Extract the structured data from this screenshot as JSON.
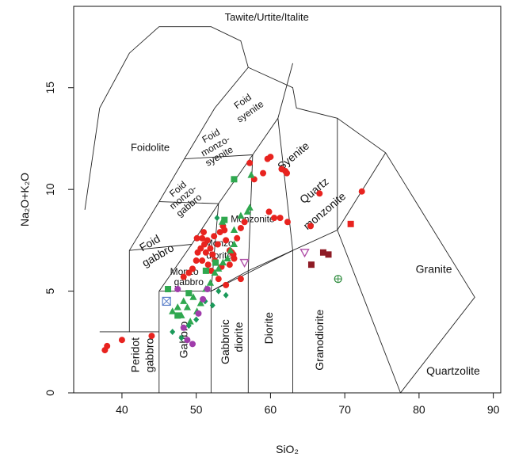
{
  "chart_data": {
    "type": "scatter",
    "title": "",
    "xlabel": "SiO₂",
    "ylabel": "Na₂O+K₂O",
    "xlim": [
      33.5,
      91
    ],
    "ylim": [
      0,
      19
    ],
    "xticks": [
      "40",
      "50",
      "60",
      "70",
      "80",
      "90"
    ],
    "yticks": [
      "0",
      "5",
      "10",
      "15"
    ],
    "xtick_values": [
      40,
      50,
      60,
      70,
      80,
      90
    ],
    "ytick_values": [
      0,
      5,
      10,
      15
    ],
    "field_boundaries": [
      [
        [
          35,
          9
        ],
        [
          37,
          14
        ],
        [
          41,
          16.7
        ],
        [
          45,
          18
        ],
        [
          52,
          18
        ],
        [
          56,
          17.3
        ],
        [
          57,
          16
        ],
        [
          63,
          15
        ],
        [
          63.5,
          14
        ],
        [
          69,
          13.5
        ],
        [
          75.5,
          11.8
        ],
        [
          87.5,
          4.7
        ],
        [
          77.5,
          0
        ]
      ],
      [
        [
          37,
          3
        ],
        [
          41,
          3
        ],
        [
          41,
          7
        ],
        [
          45,
          9.4
        ],
        [
          48.4,
          11.5
        ],
        [
          52.5,
          14
        ],
        [
          57,
          16
        ]
      ],
      [
        [
          45,
          0
        ],
        [
          45,
          5
        ]
      ],
      [
        [
          41,
          3
        ],
        [
          45,
          3
        ]
      ],
      [
        [
          45,
          5
        ],
        [
          52,
          5
        ]
      ],
      [
        [
          52,
          0
        ],
        [
          52,
          5
        ]
      ],
      [
        [
          52,
          5
        ],
        [
          57,
          6
        ],
        [
          63,
          7
        ],
        [
          69,
          8
        ],
        [
          75.5,
          11.8
        ]
      ],
      [
        [
          57,
          0
        ],
        [
          57,
          6
        ]
      ],
      [
        [
          63,
          0
        ],
        [
          63,
          7
        ]
      ],
      [
        [
          69,
          8
        ],
        [
          77.5,
          0
        ]
      ],
      [
        [
          45,
          5
        ],
        [
          49.4,
          7.3
        ],
        [
          53,
          9.3
        ],
        [
          57.6,
          11.7
        ],
        [
          61,
          13.5
        ],
        [
          63,
          16.2
        ]
      ],
      [
        [
          52,
          5
        ],
        [
          57,
          5.9
        ],
        [
          63,
          7
        ],
        [
          63,
          7
        ]
      ],
      [
        [
          52,
          5
        ],
        [
          53,
          9.3
        ]
      ],
      [
        [
          57,
          6
        ],
        [
          57.6,
          11.7
        ]
      ],
      [
        [
          63,
          7
        ],
        [
          61,
          13.5
        ]
      ],
      [
        [
          69,
          8
        ],
        [
          69,
          13.5
        ]
      ],
      [
        [
          41,
          7
        ],
        [
          49.4,
          7.3
        ]
      ],
      [
        [
          45,
          9.4
        ],
        [
          53,
          9.3
        ]
      ],
      [
        [
          48.4,
          11.5
        ],
        [
          57.6,
          11.7
        ]
      ]
    ],
    "field_labels": [
      {
        "text": "Tawite/Urtite/Italite",
        "x": 59.5,
        "y": 18.3,
        "size": 13,
        "rotate": 0
      },
      {
        "text": "Foidolite",
        "x": 43.8,
        "y": 11.9,
        "size": 13,
        "rotate": 0
      },
      {
        "text": "Foid",
        "x": 56.5,
        "y": 14.2,
        "size": 12,
        "rotate": -35
      },
      {
        "text": "syenite",
        "x": 57.5,
        "y": 13.7,
        "size": 12,
        "rotate": -35
      },
      {
        "text": "Foid",
        "x": 52.2,
        "y": 12.5,
        "size": 12,
        "rotate": -30
      },
      {
        "text": "monzo-",
        "x": 52.8,
        "y": 12.0,
        "size": 12,
        "rotate": -30
      },
      {
        "text": "syenite",
        "x": 53.3,
        "y": 11.5,
        "size": 12,
        "rotate": -30
      },
      {
        "text": "Foid",
        "x": 47.8,
        "y": 9.9,
        "size": 12,
        "rotate": -40
      },
      {
        "text": "monzo-",
        "x": 48.5,
        "y": 9.5,
        "size": 12,
        "rotate": -40
      },
      {
        "text": "gabbro",
        "x": 49.3,
        "y": 9.1,
        "size": 12,
        "rotate": -40
      },
      {
        "text": "Foid",
        "x": 44.0,
        "y": 7.2,
        "size": 14,
        "rotate": -30
      },
      {
        "text": "gabbro",
        "x": 45.1,
        "y": 6.6,
        "size": 14,
        "rotate": -30
      },
      {
        "text": "Monzonite",
        "x": 57.6,
        "y": 8.4,
        "size": 12,
        "rotate": 0
      },
      {
        "text": "Syenite",
        "x": 63.4,
        "y": 11.5,
        "size": 14,
        "rotate": -40
      },
      {
        "text": "Quartz",
        "x": 66.2,
        "y": 9.8,
        "size": 14,
        "rotate": -40
      },
      {
        "text": "monzonite",
        "x": 67.6,
        "y": 8.8,
        "size": 14,
        "rotate": -40
      },
      {
        "text": "Monzo",
        "x": 53.1,
        "y": 7.2,
        "size": 12,
        "rotate": 0
      },
      {
        "text": "diorite",
        "x": 53.1,
        "y": 6.6,
        "size": 12,
        "rotate": 0
      },
      {
        "text": "Monzo",
        "x": 48.4,
        "y": 5.8,
        "size": 12,
        "rotate": 0
      },
      {
        "text": "gabbro",
        "x": 49.0,
        "y": 5.3,
        "size": 12,
        "rotate": 0
      },
      {
        "text": "Granite",
        "x": 82.0,
        "y": 5.9,
        "size": 14,
        "rotate": 0
      },
      {
        "text": "Quartzolite",
        "x": 84.6,
        "y": 0.9,
        "size": 14,
        "rotate": 0
      },
      {
        "text": "Peridot",
        "x": 42.3,
        "y": 1.0,
        "size": 14,
        "rotate": -90
      },
      {
        "text": "gabbro",
        "x": 44.2,
        "y": 1.0,
        "size": 14,
        "rotate": -90
      },
      {
        "text": "Gabbro",
        "x": 48.8,
        "y": 1.7,
        "size": 14,
        "rotate": -90
      },
      {
        "text": "Gabbroic",
        "x": 54.4,
        "y": 1.4,
        "size": 14,
        "rotate": -90
      },
      {
        "text": "diorite",
        "x": 56.2,
        "y": 2.0,
        "size": 14,
        "rotate": -90
      },
      {
        "text": "Diorite",
        "x": 60.3,
        "y": 2.4,
        "size": 14,
        "rotate": -90
      },
      {
        "text": "Granodiorite",
        "x": 67.1,
        "y": 1.1,
        "size": 14,
        "rotate": -90
      }
    ],
    "series": [
      {
        "color": "#e8231f",
        "shape": "circle",
        "points": [
          [
            37.7,
            2.1
          ],
          [
            38.0,
            2.3
          ],
          [
            40.0,
            2.6
          ],
          [
            44.0,
            2.8
          ],
          [
            48.3,
            5.7
          ],
          [
            49.0,
            5.9
          ],
          [
            49.5,
            6.1
          ],
          [
            50.0,
            6.5
          ],
          [
            50.2,
            6.9
          ],
          [
            50.6,
            7.1
          ],
          [
            50.8,
            7.6
          ],
          [
            51.1,
            7.3
          ],
          [
            51.3,
            6.9
          ],
          [
            51.5,
            7.5
          ],
          [
            51.9,
            7.1
          ],
          [
            52.2,
            6.8
          ],
          [
            52.5,
            6.5
          ],
          [
            52.9,
            7.3
          ],
          [
            53.2,
            7.9
          ],
          [
            53.6,
            8.2
          ],
          [
            54.0,
            7.5
          ],
          [
            54.5,
            7.0
          ],
          [
            54.8,
            6.9
          ],
          [
            55.1,
            6.6
          ],
          [
            53.4,
            6.2
          ],
          [
            52.0,
            6.0
          ],
          [
            51.6,
            6.3
          ],
          [
            50.8,
            6.5
          ],
          [
            50.1,
            7.6
          ],
          [
            51.0,
            7.9
          ],
          [
            52.4,
            7.7
          ],
          [
            53.8,
            8.0
          ],
          [
            55.5,
            7.6
          ],
          [
            56.0,
            8.1
          ],
          [
            56.5,
            8.4
          ],
          [
            57.2,
            11.3
          ],
          [
            57.8,
            10.5
          ],
          [
            59.0,
            10.8
          ],
          [
            59.6,
            11.5
          ],
          [
            60.0,
            11.6
          ],
          [
            61.5,
            11.0
          ],
          [
            62.0,
            10.9
          ],
          [
            62.2,
            10.8
          ],
          [
            59.8,
            8.9
          ],
          [
            60.5,
            8.6
          ],
          [
            61.3,
            8.6
          ],
          [
            62.3,
            8.4
          ],
          [
            65.4,
            8.2
          ],
          [
            66.6,
            9.8
          ],
          [
            72.3,
            9.9
          ],
          [
            53.0,
            5.6
          ],
          [
            54.0,
            5.3
          ],
          [
            56.0,
            5.6
          ],
          [
            54.5,
            6.3
          ],
          [
            55.0,
            6.8
          ]
        ]
      },
      {
        "color": "#2fa84f",
        "shape": "triangle",
        "points": [
          [
            46.8,
            4.0
          ],
          [
            47.5,
            4.2
          ],
          [
            48.0,
            3.8
          ],
          [
            48.3,
            4.5
          ],
          [
            48.8,
            4.2
          ],
          [
            49.2,
            3.5
          ],
          [
            49.6,
            4.7
          ],
          [
            50.1,
            4.0
          ],
          [
            50.6,
            4.4
          ],
          [
            51.3,
            5.1
          ],
          [
            51.9,
            5.4
          ],
          [
            52.5,
            5.9
          ],
          [
            53.0,
            6.1
          ],
          [
            53.6,
            6.4
          ],
          [
            54.2,
            6.6
          ],
          [
            54.6,
            7.0
          ],
          [
            55.1,
            7.3
          ],
          [
            56.0,
            8.7
          ],
          [
            56.9,
            8.9
          ],
          [
            57.2,
            9.1
          ],
          [
            57.4,
            10.7
          ],
          [
            55.1,
            8.0
          ],
          [
            53.5,
            8.4
          ]
        ]
      },
      {
        "color": "#2fa84f",
        "shape": "square",
        "points": [
          [
            46.2,
            5.1
          ],
          [
            47.5,
            3.8
          ],
          [
            49.0,
            4.9
          ],
          [
            51.3,
            6.0
          ],
          [
            52.6,
            6.4
          ],
          [
            53.8,
            8.5
          ],
          [
            55.1,
            10.5
          ]
        ]
      },
      {
        "color": "#1a9a5a",
        "shape": "diamond",
        "points": [
          [
            46.8,
            3.0
          ],
          [
            48.0,
            2.7
          ],
          [
            49.0,
            3.3
          ],
          [
            50.0,
            3.6
          ],
          [
            51.2,
            4.5
          ],
          [
            52.2,
            4.3
          ],
          [
            53.0,
            5.0
          ],
          [
            54.0,
            4.8
          ],
          [
            52.8,
            8.6
          ]
        ]
      },
      {
        "color": "#a03cab",
        "shape": "circle",
        "points": [
          [
            48.3,
            3.2
          ],
          [
            48.8,
            2.6
          ],
          [
            49.5,
            2.4
          ],
          [
            50.3,
            3.9
          ],
          [
            50.9,
            4.6
          ],
          [
            51.5,
            5.1
          ],
          [
            47.5,
            5.1
          ]
        ]
      },
      {
        "color": "#8e1b25",
        "shape": "square",
        "points": [
          [
            65.5,
            6.3
          ],
          [
            67.1,
            6.9
          ],
          [
            67.8,
            6.8
          ]
        ]
      },
      {
        "color": "#b04fa8",
        "shape": "triangle-down",
        "points": [
          [
            56.5,
            6.4
          ],
          [
            64.6,
            6.9
          ]
        ]
      },
      {
        "color": "#e8231f",
        "shape": "square",
        "points": [
          [
            70.8,
            8.3
          ]
        ]
      },
      {
        "color": "#5a7fc9",
        "shape": "crossbox",
        "points": [
          [
            46.0,
            4.5
          ]
        ]
      },
      {
        "color": "#2e8b3d",
        "shape": "crosscircle",
        "points": [
          [
            69.1,
            5.6
          ]
        ]
      }
    ]
  }
}
